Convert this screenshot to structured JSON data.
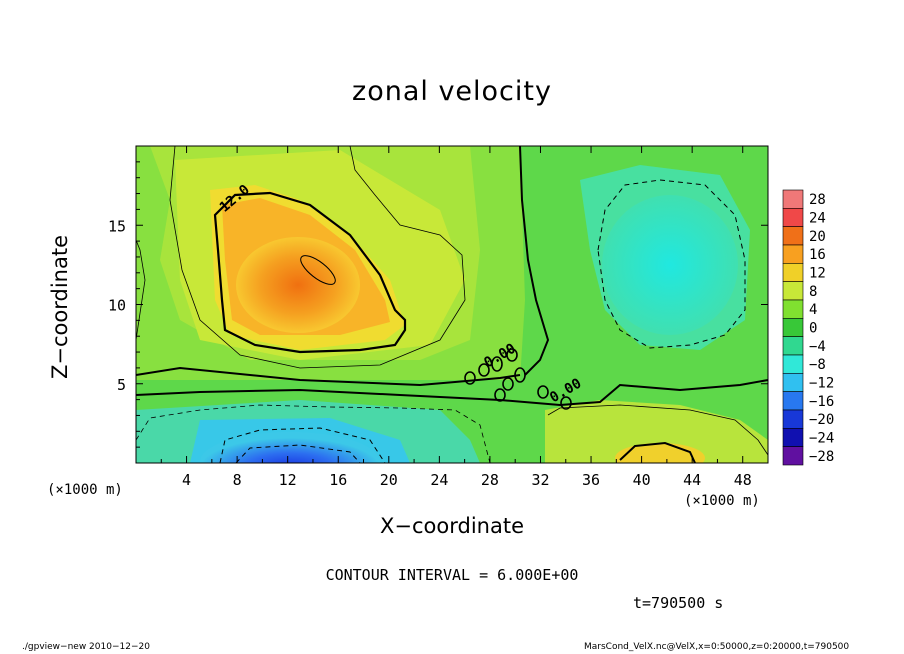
{
  "chart_data": {
    "type": "heatmap",
    "title": "zonal velocity",
    "xlabel": "X−coordinate",
    "ylabel": "Z−coordinate",
    "x_unit": "(×1000 m)",
    "y_unit": "(×1000 m)",
    "xlim": [
      0,
      50
    ],
    "ylim": [
      0,
      20
    ],
    "xticks": [
      4,
      8,
      12,
      16,
      20,
      24,
      28,
      32,
      36,
      40,
      44,
      48
    ],
    "yticks": [
      5,
      10,
      15
    ],
    "colorbar_levels": [
      28,
      24,
      20,
      16,
      12,
      8,
      4,
      0,
      -4,
      -8,
      -12,
      -16,
      -20,
      -24,
      -28
    ],
    "colorbar_labels": [
      "28",
      "24",
      "20",
      "16",
      "12",
      "8",
      "4",
      "0",
      "−4",
      "−8",
      "−12",
      "−16",
      "−20",
      "−24",
      "−28"
    ],
    "contour_labels": [
      {
        "text": "12.0",
        "x": 7.0,
        "y": 15.8
      },
      {
        "text": "0.00",
        "x": 27.8,
        "y": 6.0
      },
      {
        "text": "0.00",
        "x": 33.0,
        "y": 3.8
      }
    ],
    "features": [
      {
        "name": "positive maximum",
        "x": 14.5,
        "z": 12.0,
        "value": 18
      },
      {
        "name": "negative minimum",
        "x": 12.5,
        "z": 0.5,
        "value": -18
      },
      {
        "name": "negative region",
        "x": 41.0,
        "z": 12.5,
        "value": -8
      },
      {
        "name": "surface positive",
        "x": 42.0,
        "z": 0.5,
        "value": 12
      }
    ],
    "grid": false,
    "legend": "right"
  },
  "contour_interval": "CONTOUR INTERVAL = 6.000E+00",
  "time_label": "t=790500 s",
  "footer_left": "./gpview−new   2010−12−20",
  "footer_right": "MarsCond_VelX.nc@VelX,x=0:50000,z=0:20000,t=790500"
}
